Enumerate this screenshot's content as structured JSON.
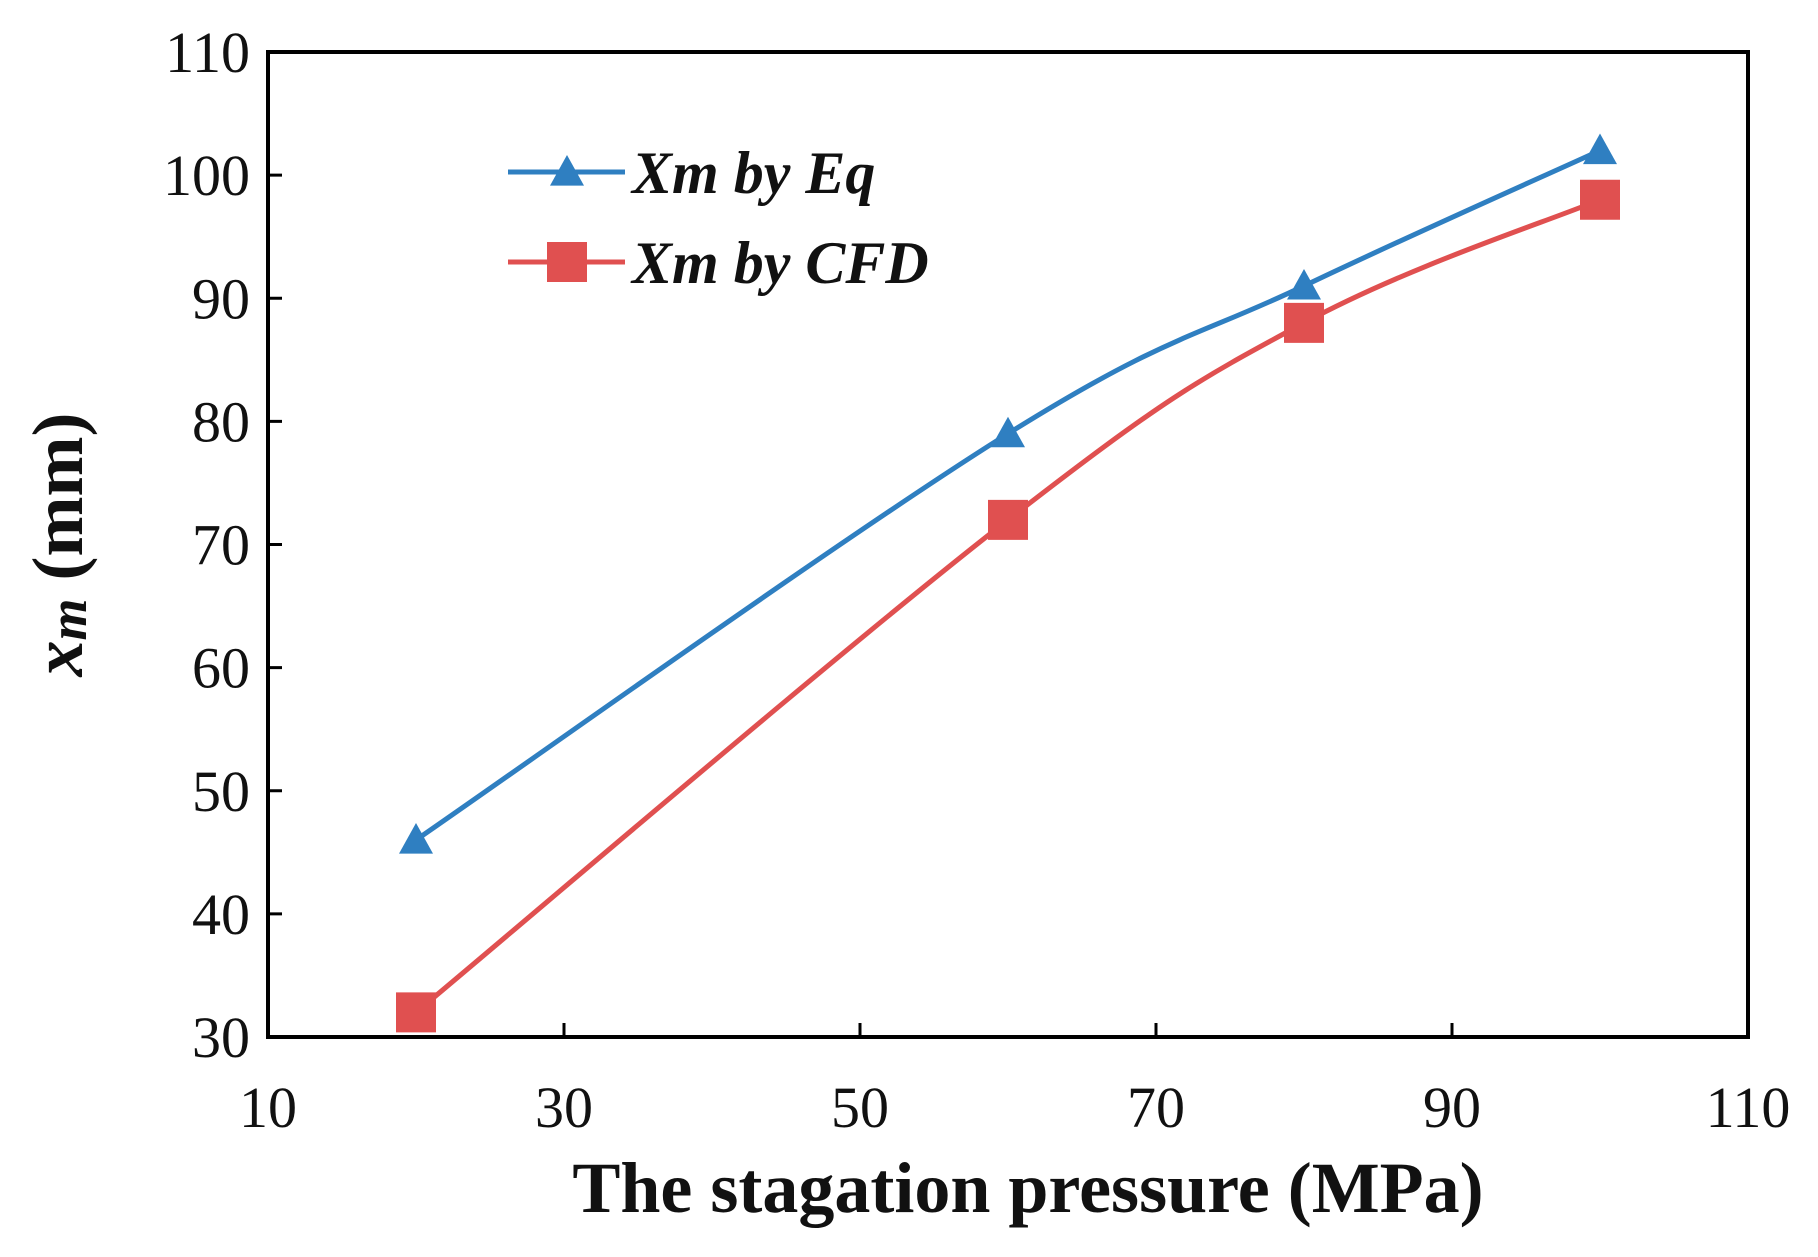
{
  "chart_data": {
    "type": "line",
    "xlabel": "The stagation pressure (MPa)",
    "ylabel_main": "x",
    "ylabel_sub": "m",
    "ylabel_unit": " (mm)",
    "xlim": [
      10,
      110
    ],
    "ylim": [
      30,
      110
    ],
    "xticks": [
      10,
      30,
      50,
      70,
      90,
      110
    ],
    "yticks": [
      30,
      40,
      50,
      60,
      70,
      80,
      90,
      100,
      110
    ],
    "grid": false,
    "legend_position": "top-left",
    "x": [
      20,
      60,
      80,
      100
    ],
    "series": [
      {
        "name": "Xm by Eq",
        "values": [
          46,
          79,
          91,
          102
        ],
        "color": "#2f7fc1",
        "marker": "triangle"
      },
      {
        "name": "Xm by CFD",
        "values": [
          32,
          72,
          88,
          98
        ],
        "color": "#e05050",
        "marker": "square"
      }
    ]
  }
}
